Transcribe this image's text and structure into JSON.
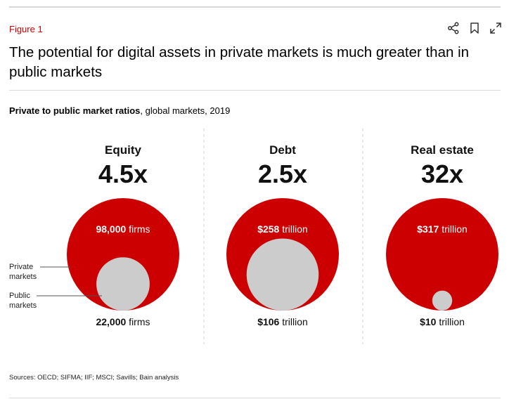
{
  "header": {
    "figure_label": "Figure 1",
    "title": "The potential for digital assets in private markets is much greater than in public markets"
  },
  "toolbar": {
    "share_icon": "share-icon",
    "bookmark_icon": "bookmark-icon",
    "expand_icon": "expand-icon"
  },
  "subtitle": {
    "bold": "Private to public market ratios",
    "rest": ", global markets, 2019"
  },
  "legend": {
    "private": [
      "Private",
      "markets"
    ],
    "public": [
      "Public",
      "markets"
    ]
  },
  "chart_data": {
    "type": "bubble-comparison",
    "colors": {
      "private": "#cc0000",
      "public": "#cccccc"
    },
    "panels": [
      {
        "category": "Equity",
        "ratio": "4.5x",
        "private_value": "98,000",
        "private_unit": "firms",
        "public_value": "22,000",
        "public_unit": "firms",
        "private_bold": true,
        "public_bold": true
      },
      {
        "category": "Debt",
        "ratio": "2.5x",
        "private_value": "$258",
        "private_unit": "trillion",
        "public_value": "$106",
        "public_unit": "trillion",
        "private_bold": true,
        "public_bold": true
      },
      {
        "category": "Real estate",
        "ratio": "32x",
        "private_value": "$317",
        "private_unit": "trillion",
        "public_value": "$10",
        "public_unit": "trillion",
        "private_bold": true,
        "public_bold": true
      }
    ]
  },
  "footer": {
    "sources": "Sources: OECD; SIFMA; IIF; MSCI; Savills; Bain analysis"
  }
}
